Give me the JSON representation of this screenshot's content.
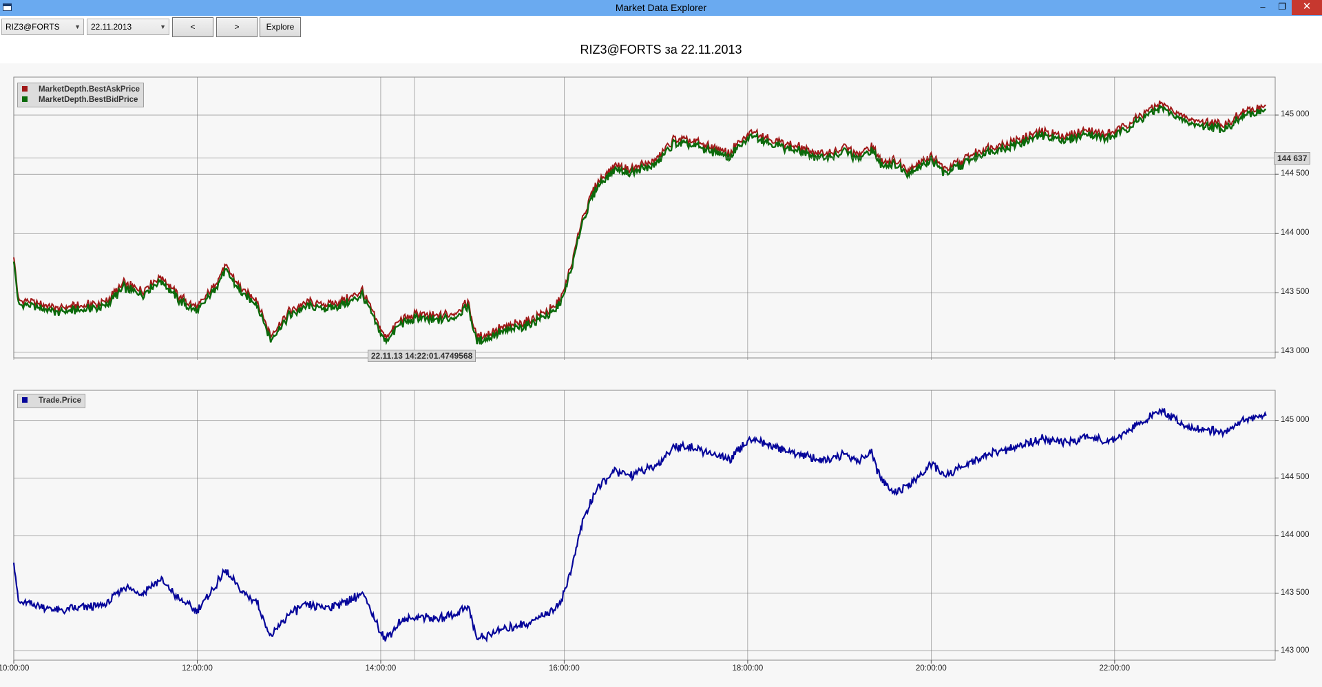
{
  "window": {
    "title": "Market Data Explorer",
    "minimize_glyph": "‒",
    "maximize_glyph": "❐",
    "close_glyph": "✕"
  },
  "toolbar": {
    "security_value": "RIZ3@FORTS",
    "date_value": "22.11.2013",
    "prev_label": "<",
    "next_label": ">",
    "explore_label": "Explore"
  },
  "chart_title": "RIZ3@FORTS за 22.11.2013",
  "cursor": {
    "price_label": "144 637",
    "price_value": 144637,
    "time_label": "22.11.13 14:22:01.4749568",
    "time_hours": 14.367
  },
  "colors": {
    "ask": "#a01818",
    "bid": "#0b6a0b",
    "trade": "#06069a",
    "grid": "#7a7a7a"
  },
  "chart_data": [
    {
      "type": "line",
      "panel": "top",
      "series": [
        {
          "name": "MarketDepth.BestAskPrice",
          "color": "#a01818"
        },
        {
          "name": "MarketDepth.BestBidPrice",
          "color": "#0b6a0b"
        }
      ],
      "x_unit": "hours",
      "x": [
        10.0,
        10.05,
        10.2,
        10.5,
        10.8,
        11.0,
        11.2,
        11.4,
        11.6,
        11.8,
        12.0,
        12.2,
        12.3,
        12.5,
        12.65,
        12.8,
        13.0,
        13.2,
        13.4,
        13.6,
        13.8,
        13.95,
        14.05,
        14.2,
        14.4,
        14.6,
        14.8,
        14.95,
        15.05,
        15.3,
        15.6,
        15.9,
        16.0,
        16.1,
        16.2,
        16.35,
        16.55,
        16.7,
        17.0,
        17.2,
        17.45,
        17.8,
        18.05,
        18.3,
        18.6,
        18.8,
        19.0,
        19.05,
        19.2,
        19.35,
        19.45,
        19.6,
        19.75,
        20.0,
        20.15,
        20.3,
        20.6,
        20.9,
        21.2,
        21.5,
        21.7,
        21.9,
        22.05,
        22.2,
        22.5,
        22.8,
        23.0,
        23.2,
        23.4,
        23.65
      ],
      "y": [
        143800,
        143420,
        143400,
        143350,
        143380,
        143400,
        143560,
        143500,
        143620,
        143450,
        143350,
        143560,
        143700,
        143500,
        143420,
        143120,
        143320,
        143400,
        143380,
        143420,
        143500,
        143250,
        143100,
        143240,
        143300,
        143280,
        143310,
        143400,
        143100,
        143180,
        143240,
        143360,
        143500,
        143780,
        144120,
        144400,
        144560,
        144520,
        144600,
        144780,
        144750,
        144660,
        144850,
        144760,
        144700,
        144650,
        144680,
        144720,
        144640,
        144720,
        144600,
        144600,
        144520,
        144640,
        144520,
        144580,
        144700,
        144760,
        144840,
        144800,
        144860,
        144820,
        144860,
        144940,
        145080,
        144940,
        144920,
        144900,
        145000,
        145060
      ],
      "xlim": [
        10.0,
        23.75
      ],
      "ylim": [
        142950,
        145320
      ],
      "y_ticks": [
        143000,
        143500,
        144000,
        144500,
        145000
      ],
      "y_tick_labels": [
        "143 000",
        "143 500",
        "144 000",
        "144 500",
        "145 000"
      ],
      "grid": true,
      "legend": "top-left"
    },
    {
      "type": "line",
      "panel": "bottom",
      "series": [
        {
          "name": "Trade.Price",
          "color": "#06069a"
        }
      ],
      "x_unit": "hours",
      "x": [
        10.0,
        10.05,
        10.2,
        10.5,
        10.8,
        11.0,
        11.2,
        11.4,
        11.6,
        11.8,
        12.0,
        12.2,
        12.3,
        12.5,
        12.65,
        12.8,
        13.0,
        13.2,
        13.4,
        13.6,
        13.8,
        13.95,
        14.05,
        14.2,
        14.4,
        14.6,
        14.8,
        14.95,
        15.05,
        15.3,
        15.6,
        15.9,
        16.0,
        16.1,
        16.2,
        16.35,
        16.55,
        16.7,
        17.0,
        17.2,
        17.45,
        17.8,
        18.05,
        18.3,
        18.6,
        18.8,
        19.0,
        19.05,
        19.2,
        19.35,
        19.45,
        19.6,
        19.75,
        20.0,
        20.15,
        20.3,
        20.6,
        20.9,
        21.2,
        21.5,
        21.7,
        21.9,
        22.05,
        22.2,
        22.5,
        22.8,
        23.0,
        23.2,
        23.4,
        23.65
      ],
      "y": [
        143780,
        143420,
        143400,
        143350,
        143380,
        143400,
        143560,
        143500,
        143620,
        143450,
        143350,
        143560,
        143700,
        143500,
        143420,
        143120,
        143320,
        143400,
        143380,
        143420,
        143500,
        143250,
        143100,
        143240,
        143300,
        143280,
        143310,
        143400,
        143100,
        143180,
        143240,
        143360,
        143500,
        143780,
        144120,
        144400,
        144560,
        144520,
        144600,
        144780,
        144750,
        144660,
        144850,
        144760,
        144700,
        144650,
        144680,
        144720,
        144640,
        144720,
        144480,
        144380,
        144420,
        144620,
        144520,
        144580,
        144700,
        144760,
        144840,
        144800,
        144860,
        144820,
        144860,
        144940,
        145080,
        144940,
        144920,
        144900,
        145000,
        145040
      ],
      "xlim": [
        10.0,
        23.75
      ],
      "ylim": [
        142920,
        145260
      ],
      "y_ticks": [
        143000,
        143500,
        144000,
        144500,
        145000
      ],
      "y_tick_labels": [
        "143 000",
        "143 500",
        "144 000",
        "144 500",
        "145 000"
      ],
      "x_ticks": [
        10,
        12,
        14,
        16,
        18,
        20,
        22
      ],
      "x_tick_labels": [
        "10:00:00",
        "12:00:00",
        "14:00:00",
        "16:00:00",
        "18:00:00",
        "20:00:00",
        "22:00:00"
      ],
      "grid": true,
      "legend": "top-left"
    }
  ]
}
